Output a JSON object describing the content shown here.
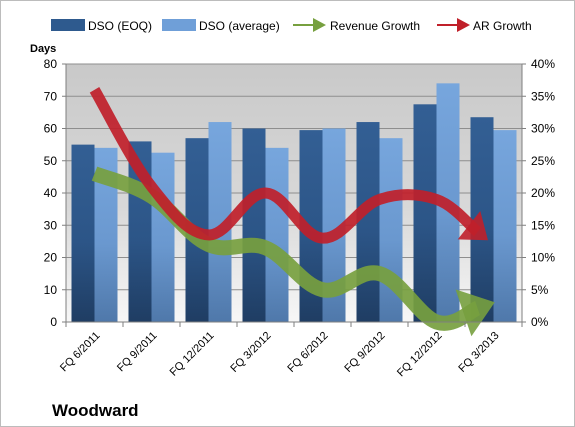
{
  "chart_data": {
    "type": "bar",
    "title": "Woodward",
    "categories": [
      "FQ 6/2011",
      "FQ 9/2011",
      "FQ 12/2011",
      "FQ 3/2012",
      "FQ 6/2012",
      "FQ 9/2012",
      "FQ 12/2012",
      "FQ 3/2013"
    ],
    "y_left_label": "Days",
    "y_left_ticks": [
      "0",
      "10",
      "20",
      "30",
      "40",
      "50",
      "60",
      "70",
      "80"
    ],
    "y_left_lim": [
      0,
      80
    ],
    "y_right_ticks": [
      "0%",
      "5%",
      "10%",
      "15%",
      "20%",
      "25%",
      "30%",
      "35%",
      "40%"
    ],
    "y_right_lim": [
      0,
      40
    ],
    "series": [
      {
        "name": "DSO (EOQ)",
        "type": "bar",
        "axis": "left",
        "color": "#2e5a8e",
        "values": [
          55,
          56,
          57,
          60,
          59.5,
          62,
          67.5,
          63.5
        ]
      },
      {
        "name": "DSO (average)",
        "type": "bar",
        "axis": "left",
        "color": "#6f9fd8",
        "values": [
          54,
          52.5,
          62,
          54,
          60,
          57,
          74,
          59.5
        ]
      },
      {
        "name": "Revenue Growth",
        "type": "arrow-line",
        "axis": "right",
        "color": "#77a03f",
        "values": [
          23,
          19.5,
          12,
          11.5,
          5,
          7.5,
          0,
          3
        ]
      },
      {
        "name": "AR Growth",
        "type": "arrow-line",
        "axis": "right",
        "color": "#c0202a",
        "values": [
          36,
          21,
          13.5,
          20,
          13,
          19,
          19,
          12
        ]
      }
    ],
    "legend_position": "top",
    "grid": true
  }
}
